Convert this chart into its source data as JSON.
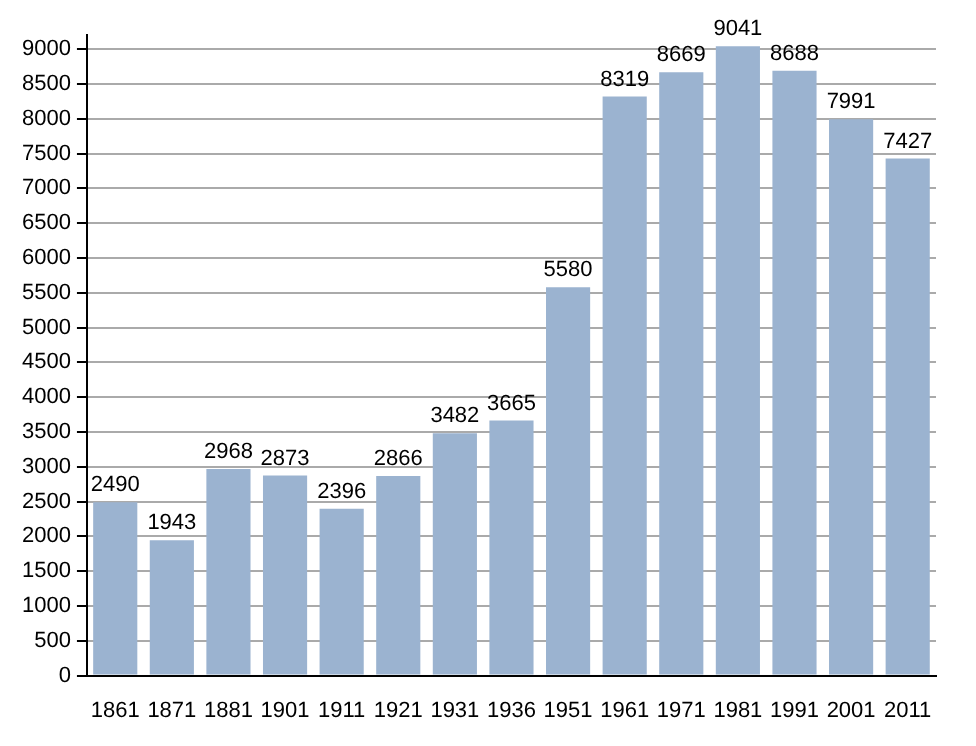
{
  "chart_data": {
    "type": "bar",
    "categories": [
      "1861",
      "1871",
      "1881",
      "1901",
      "1911",
      "1921",
      "1931",
      "1936",
      "1951",
      "1961",
      "1971",
      "1981",
      "1991",
      "2001",
      "2011"
    ],
    "values": [
      2490,
      1943,
      2968,
      2873,
      2396,
      2866,
      3482,
      3665,
      5580,
      8319,
      8669,
      9041,
      8688,
      7991,
      7427
    ],
    "color": "#9bb3d0",
    "ylim": [
      0,
      9200
    ],
    "yticks": [
      0,
      500,
      1000,
      1500,
      2000,
      2500,
      3000,
      3500,
      4000,
      4500,
      5000,
      5500,
      6000,
      6500,
      7000,
      7500,
      8000,
      8500,
      9000
    ],
    "grid": "y",
    "data_labels": true
  }
}
